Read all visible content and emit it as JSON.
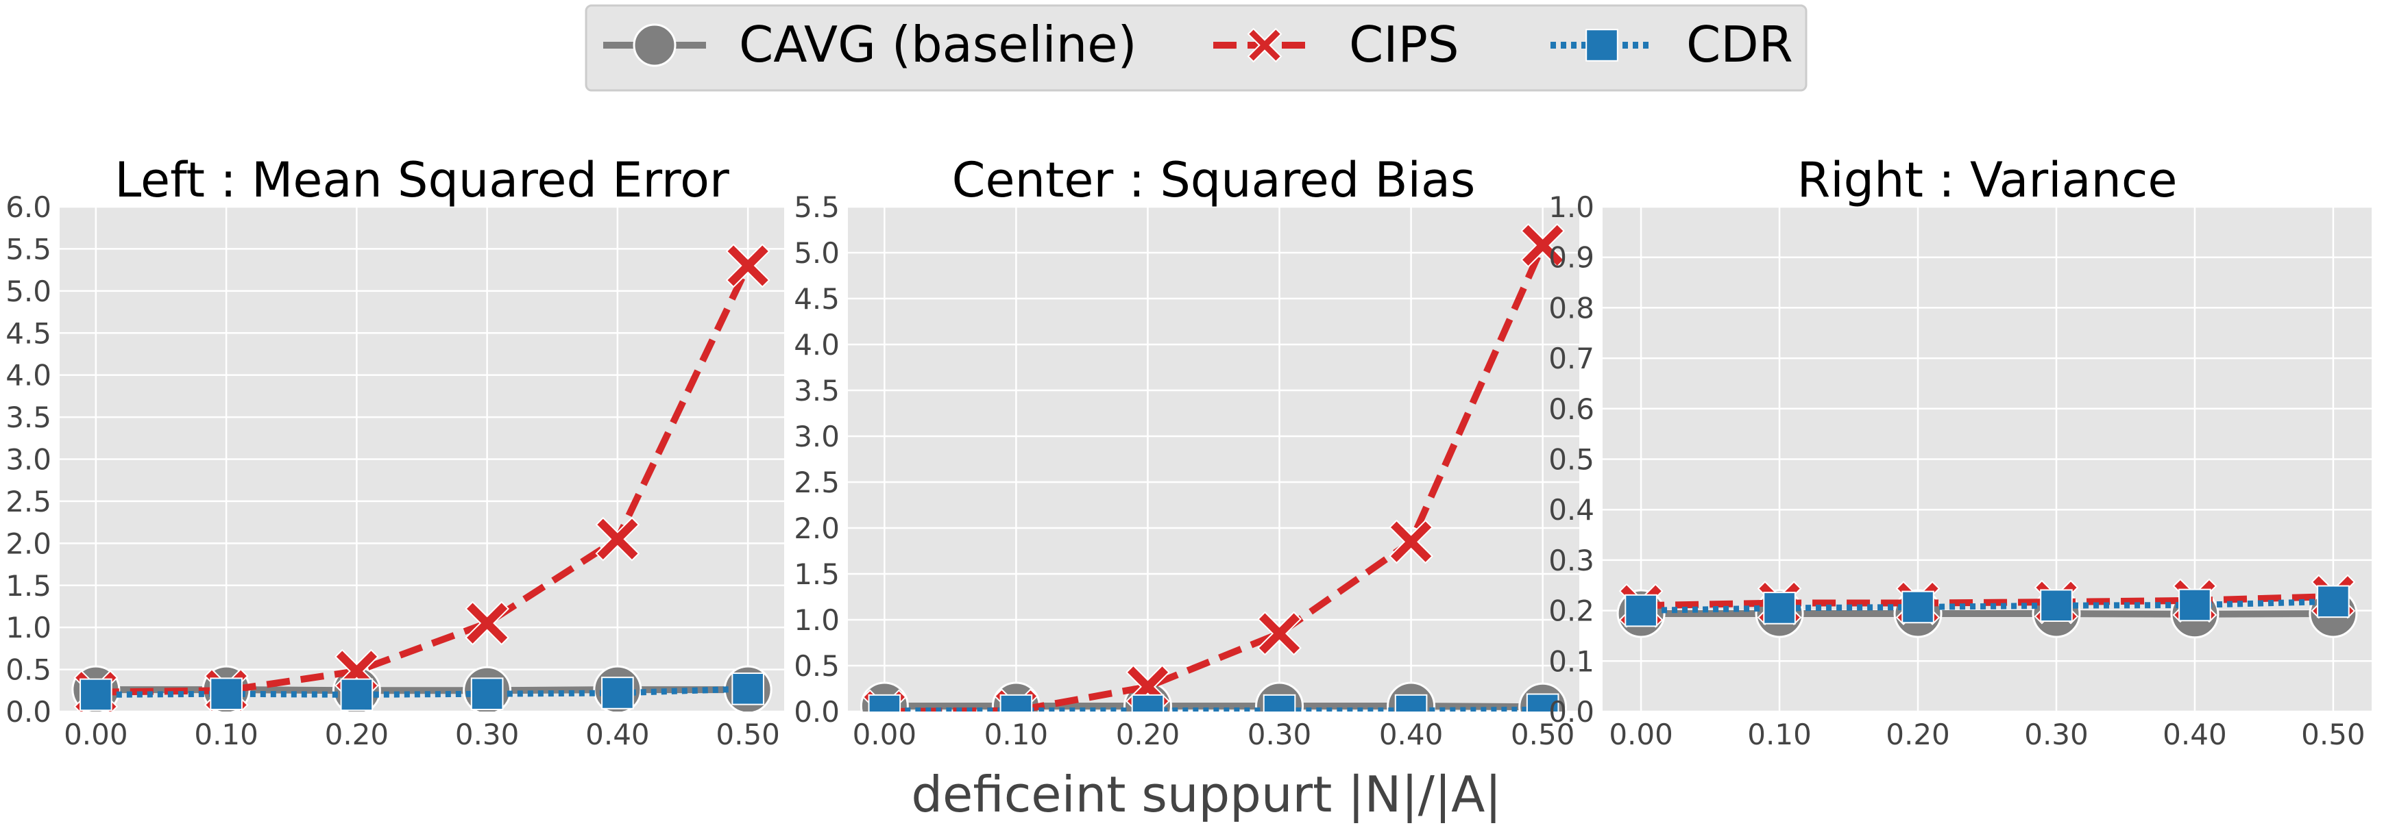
{
  "colors": {
    "CAVG (baseline)": "#7f7f7f",
    "CIPS": "#d62728",
    "CDR": "#1f77b4"
  },
  "legend": {
    "placement": "top-center",
    "entries": [
      {
        "label": "CAVG (baseline)",
        "marker": "circle",
        "line": "solid"
      },
      {
        "label": "CIPS",
        "marker": "x",
        "line": "dashed"
      },
      {
        "label": "CDR",
        "marker": "square",
        "line": "dotted"
      }
    ]
  },
  "xlabel": "deficeint suppurt |N|/|A|",
  "chart_data": [
    {
      "type": "line",
      "title": "Left : Mean Squared Error",
      "x": [
        0.0,
        0.1,
        0.2,
        0.3,
        0.4,
        0.5
      ],
      "x_tick_labels": [
        "0.00",
        "0.10",
        "0.20",
        "0.30",
        "0.40",
        "0.50"
      ],
      "ylim": [
        0,
        6.0
      ],
      "y_tick_labels": [
        "0.0",
        "0.5",
        "1.0",
        "1.5",
        "2.0",
        "2.5",
        "3.0",
        "3.5",
        "4.0",
        "4.5",
        "5.0",
        "5.5",
        "6.0"
      ],
      "grid": true,
      "series": [
        {
          "name": "CAVG (baseline)",
          "values": [
            0.26,
            0.26,
            0.25,
            0.25,
            0.26,
            0.26
          ]
        },
        {
          "name": "CIPS",
          "values": [
            0.23,
            0.25,
            0.48,
            1.05,
            2.05,
            5.3
          ]
        },
        {
          "name": "CDR",
          "values": [
            0.2,
            0.21,
            0.2,
            0.21,
            0.22,
            0.27
          ]
        }
      ]
    },
    {
      "type": "line",
      "title": "Center : Squared Bias",
      "x": [
        0.0,
        0.1,
        0.2,
        0.3,
        0.4,
        0.5
      ],
      "x_tick_labels": [
        "0.00",
        "0.10",
        "0.20",
        "0.30",
        "0.40",
        "0.50"
      ],
      "ylim": [
        0,
        5.5
      ],
      "y_tick_labels": [
        "0.0",
        "0.5",
        "1.0",
        "1.5",
        "2.0",
        "2.5",
        "3.0",
        "3.5",
        "4.0",
        "4.5",
        "5.0",
        "5.5"
      ],
      "grid": true,
      "series": [
        {
          "name": "CAVG (baseline)",
          "values": [
            0.06,
            0.06,
            0.06,
            0.06,
            0.06,
            0.05
          ]
        },
        {
          "name": "CIPS",
          "values": [
            0.0,
            0.01,
            0.27,
            0.85,
            1.85,
            5.08
          ]
        },
        {
          "name": "CDR",
          "values": [
            0.01,
            0.01,
            0.01,
            0.01,
            0.01,
            0.02
          ]
        }
      ]
    },
    {
      "type": "line",
      "title": "Right : Variance",
      "x": [
        0.0,
        0.1,
        0.2,
        0.3,
        0.4,
        0.5
      ],
      "x_tick_labels": [
        "0.00",
        "0.10",
        "0.20",
        "0.30",
        "0.40",
        "0.50"
      ],
      "ylim": [
        0,
        1.0
      ],
      "y_tick_labels": [
        "0.0",
        "0.1",
        "0.2",
        "0.3",
        "0.4",
        "0.5",
        "0.6",
        "0.7",
        "0.8",
        "0.9",
        "1.0"
      ],
      "grid": true,
      "series": [
        {
          "name": "CAVG (baseline)",
          "values": [
            0.194,
            0.194,
            0.194,
            0.194,
            0.193,
            0.194
          ]
        },
        {
          "name": "CIPS",
          "values": [
            0.21,
            0.215,
            0.215,
            0.217,
            0.22,
            0.228
          ]
        },
        {
          "name": "CDR",
          "values": [
            0.2,
            0.205,
            0.207,
            0.21,
            0.211,
            0.218
          ]
        }
      ]
    }
  ]
}
